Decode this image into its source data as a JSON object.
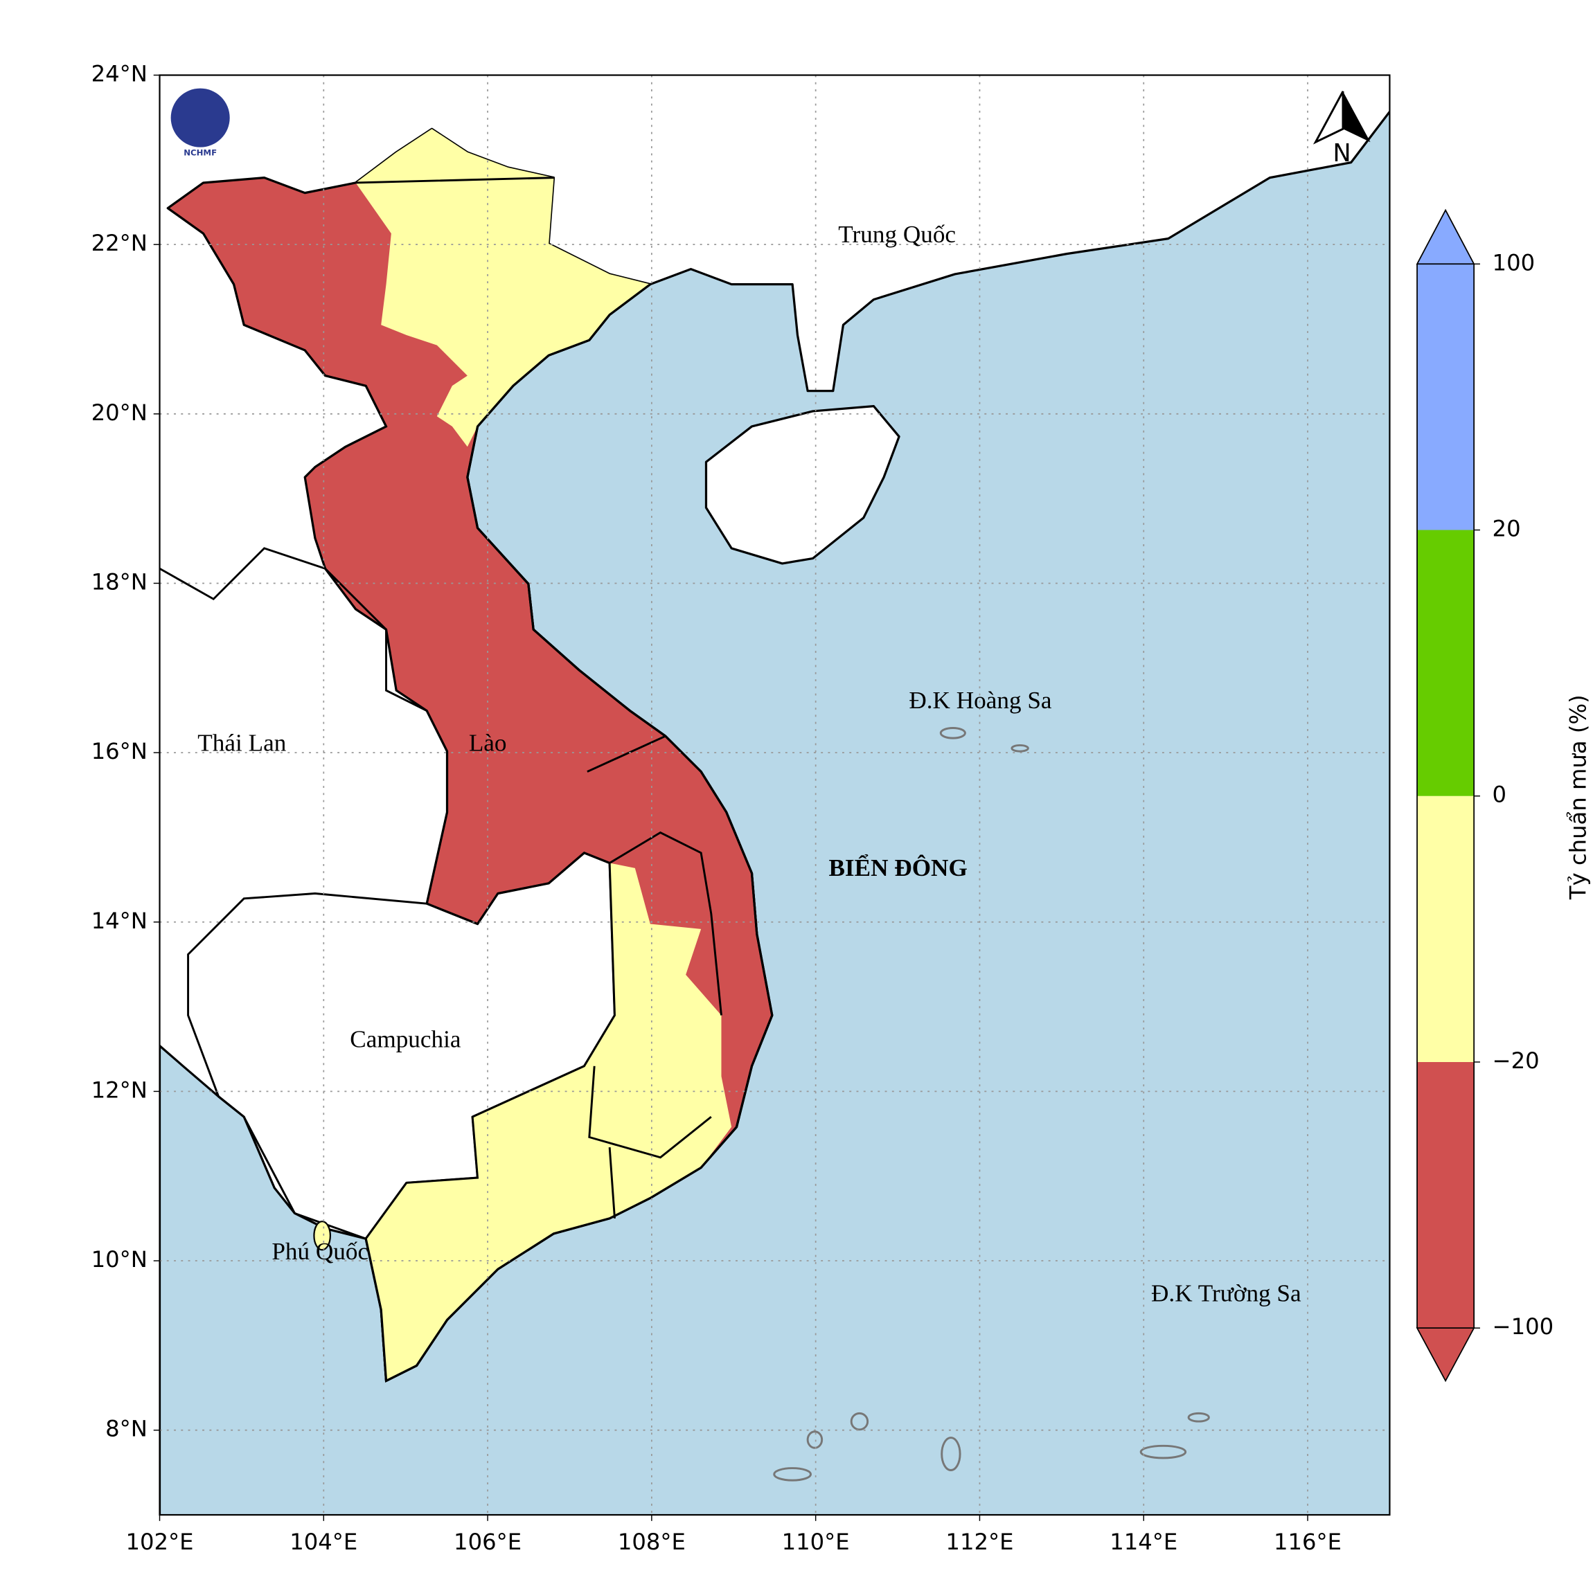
{
  "map": {
    "xlim": [
      102,
      117
    ],
    "ylim": [
      7,
      24
    ],
    "xticks": [
      {
        "value": 102,
        "label": "102°E"
      },
      {
        "value": 104,
        "label": "104°E"
      },
      {
        "value": 106,
        "label": "106°E"
      },
      {
        "value": 108,
        "label": "108°E"
      },
      {
        "value": 110,
        "label": "110°E"
      },
      {
        "value": 112,
        "label": "112°E"
      },
      {
        "value": 114,
        "label": "114°E"
      },
      {
        "value": 116,
        "label": "116°E"
      }
    ],
    "yticks": [
      {
        "value": 8,
        "label": "8°N"
      },
      {
        "value": 10,
        "label": "10°N"
      },
      {
        "value": 12,
        "label": "12°N"
      },
      {
        "value": 14,
        "label": "14°N"
      },
      {
        "value": 16,
        "label": "16°N"
      },
      {
        "value": 18,
        "label": "18°N"
      },
      {
        "value": 20,
        "label": "20°N"
      },
      {
        "value": 22,
        "label": "22°N"
      },
      {
        "value": 24,
        "label": "24°N"
      }
    ],
    "grid": true,
    "places": [
      "Trung Quốc",
      "Thái Lan",
      "Lào",
      "Campuchia",
      "Phú Quốc",
      "Đ.K Hoàng Sa",
      "Đ.K Trường Sa"
    ],
    "sea_label": "BIỂN ĐÔNG",
    "logo": "NCHMF",
    "north": "N",
    "colorbar": {
      "label": "Tỷ chuẩn mưa (%)",
      "levels": [
        {
          "value": -100,
          "label": "−100"
        },
        {
          "value": -20,
          "label": "−20"
        },
        0,
        20,
        100
      ],
      "colors": [
        "#d05050",
        "#ffffa6",
        "#66cc00",
        "#88aaff"
      ]
    }
  }
}
